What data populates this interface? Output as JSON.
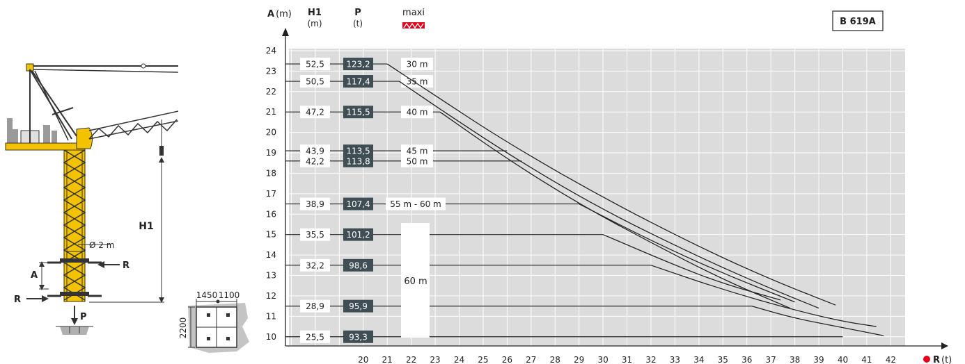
{
  "model_label": "B 619A",
  "headers": {
    "a_label": "A",
    "a_unit": "(m)",
    "h1_label": "H1",
    "h1_unit": "(m)",
    "p_label": "P",
    "p_unit": "(t)",
    "maxi_label": "maxi"
  },
  "x_axis": {
    "label": "R",
    "unit": "(t)"
  },
  "crane": {
    "h1_label": "H1",
    "a_label": "A",
    "r_label_top": "R",
    "r_label_bottom": "R",
    "p_label": "P",
    "diameter_label": "Ø 2 m"
  },
  "base_plan": {
    "dim_a": "1450",
    "dim_b": "1100",
    "dim_side": "2200"
  },
  "jib_note": "60 m",
  "chart_data": {
    "type": "line",
    "xlabel": "R (t)",
    "ylabel": "A (m)",
    "x_ticks": [
      20,
      21,
      22,
      23,
      24,
      25,
      26,
      27,
      28,
      29,
      30,
      31,
      32,
      33,
      34,
      35,
      36,
      37,
      38,
      39,
      40,
      41,
      42
    ],
    "y_ticks": [
      10,
      11,
      12,
      13,
      14,
      15,
      16,
      17,
      18,
      19,
      20,
      21,
      22,
      23,
      24
    ],
    "xlim": [
      16.9,
      42.6
    ],
    "ylim": [
      9.55,
      24.1
    ],
    "grid": true,
    "rows": [
      {
        "a": 23.35,
        "h1": "52,5",
        "p": "123,2",
        "jib": "30 m"
      },
      {
        "a": 22.5,
        "h1": "50,5",
        "p": "117,4",
        "jib": "35 m"
      },
      {
        "a": 21.0,
        "h1": "47,2",
        "p": "115,5",
        "jib": "40 m"
      },
      {
        "a": 19.1,
        "h1": "43,9",
        "p": "113,5",
        "jib": "45 m"
      },
      {
        "a": 18.6,
        "h1": "42,2",
        "p": "113,8",
        "jib": "50 m"
      },
      {
        "a": 16.5,
        "h1": "38,9",
        "p": "107,4",
        "jib": "55 m - 60 m"
      },
      {
        "a": 15.0,
        "h1": "35,5",
        "p": "101,2",
        "jib": ""
      },
      {
        "a": 13.5,
        "h1": "32,2",
        "p": "98,6",
        "jib": ""
      },
      {
        "a": 11.5,
        "h1": "28,9",
        "p": "95,9",
        "jib": ""
      },
      {
        "a": 10.0,
        "h1": "25,5",
        "p": "93,3",
        "jib": ""
      }
    ],
    "curves": [
      {
        "points": [
          [
            21.0,
            23.35
          ],
          [
            23.0,
            21.8
          ],
          [
            26.0,
            19.5
          ],
          [
            30.0,
            16.8
          ],
          [
            34.0,
            14.4
          ],
          [
            37.0,
            12.8
          ],
          [
            39.7,
            11.55
          ]
        ]
      },
      {
        "points": [
          [
            21.5,
            22.5
          ],
          [
            23.5,
            20.9
          ],
          [
            26.5,
            18.6
          ],
          [
            30.0,
            16.2
          ],
          [
            34.0,
            13.9
          ],
          [
            37.0,
            12.35
          ],
          [
            39.0,
            11.4
          ]
        ]
      },
      {
        "points": [
          [
            23.2,
            21.0
          ],
          [
            26.0,
            18.7
          ],
          [
            29.0,
            16.5
          ],
          [
            32.0,
            14.6
          ],
          [
            35.0,
            12.8
          ],
          [
            37.8,
            11.4
          ]
        ]
      },
      {
        "points": [
          [
            29.0,
            16.5
          ],
          [
            32.0,
            14.7
          ],
          [
            35.0,
            13.1
          ],
          [
            38.0,
            11.7
          ]
        ]
      },
      {
        "points": [
          [
            30.0,
            15.0
          ],
          [
            33.0,
            13.5
          ],
          [
            35.0,
            12.6
          ],
          [
            37.4,
            11.8
          ]
        ]
      },
      {
        "points": [
          [
            32.0,
            13.5
          ],
          [
            35.0,
            12.3
          ],
          [
            38.0,
            11.3
          ],
          [
            40.0,
            10.75
          ],
          [
            41.4,
            10.5
          ]
        ]
      },
      {
        "points": [
          [
            36.2,
            11.5
          ],
          [
            38.0,
            10.9
          ],
          [
            40.0,
            10.45
          ],
          [
            41.7,
            10.05
          ]
        ]
      }
    ]
  }
}
